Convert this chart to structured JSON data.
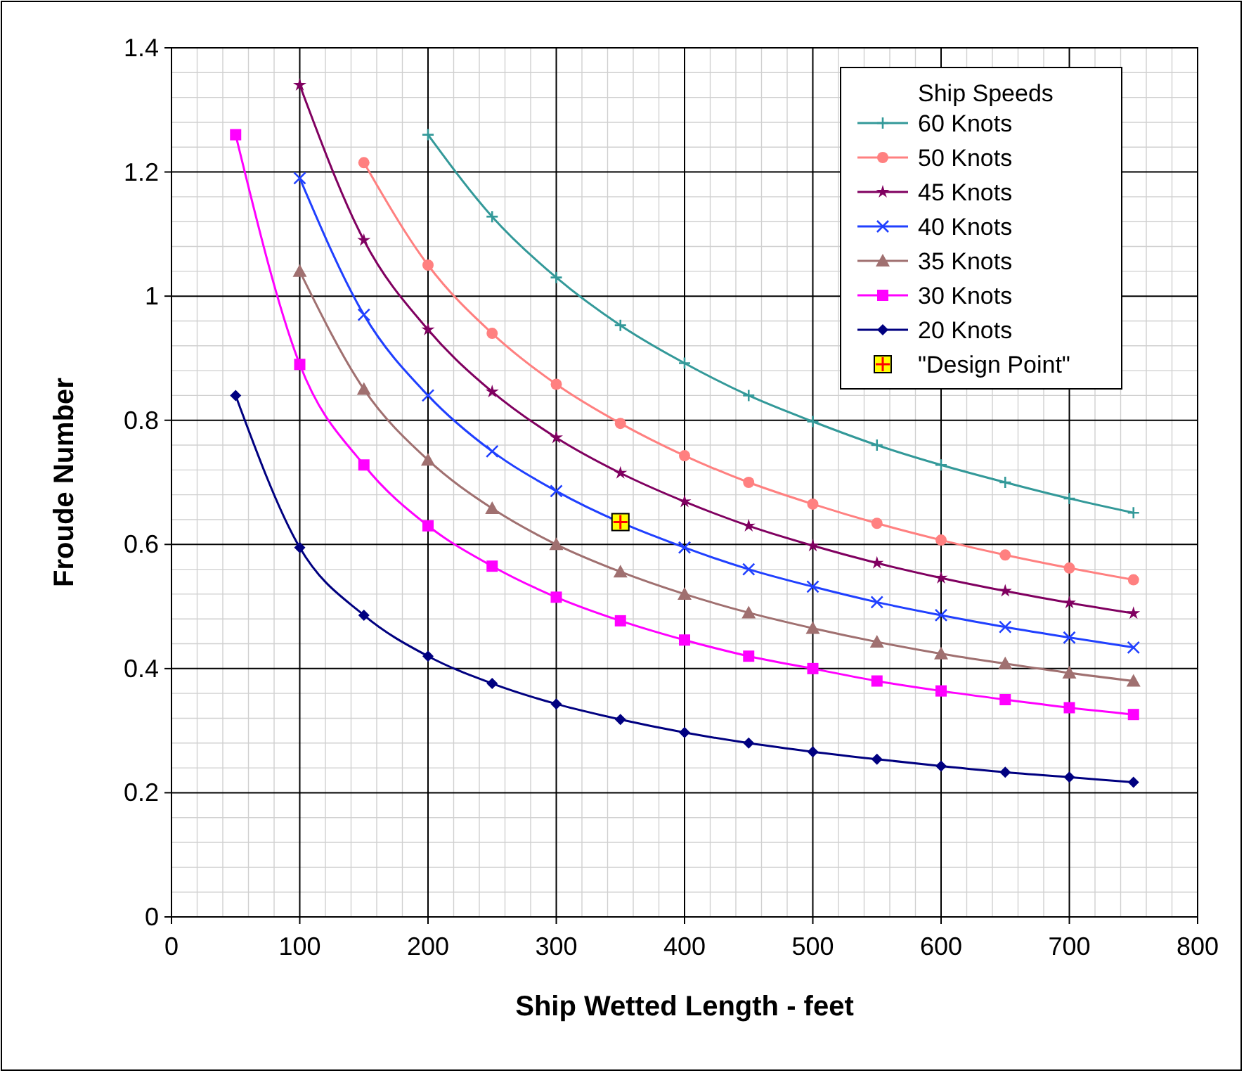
{
  "chart_data": {
    "type": "line",
    "xlabel": "Ship Wetted Length - feet",
    "ylabel": "Froude Number",
    "legend_title": "Ship Speeds",
    "legend": "top right",
    "grid": true,
    "xlim": [
      0,
      800
    ],
    "xticks": [
      0,
      100,
      200,
      300,
      400,
      500,
      600,
      700,
      800
    ],
    "ylim": [
      0,
      1.4
    ],
    "yticks": [
      0,
      0.2,
      0.4,
      0.6,
      0.8,
      1,
      1.2,
      1.4
    ],
    "x": [
      50,
      100,
      150,
      200,
      250,
      300,
      350,
      400,
      450,
      500,
      550,
      600,
      650,
      700,
      750
    ],
    "series": [
      {
        "name": "60 Knots",
        "color": "#339999",
        "marker": "cross",
        "values": [
          null,
          null,
          null,
          1.26,
          1.128,
          1.03,
          0.953,
          0.892,
          0.84,
          0.798,
          0.76,
          0.728,
          0.7,
          0.674,
          0.651
        ]
      },
      {
        "name": "50 Knots",
        "color": "#ff8080",
        "marker": "circle",
        "values": [
          null,
          null,
          1.215,
          1.05,
          0.94,
          0.858,
          0.795,
          0.743,
          0.7,
          0.665,
          0.634,
          0.607,
          0.583,
          0.562,
          0.543
        ]
      },
      {
        "name": "45 Knots",
        "color": "#800060",
        "marker": "star",
        "values": [
          null,
          1.34,
          1.09,
          0.946,
          0.846,
          0.772,
          0.715,
          0.669,
          0.63,
          0.598,
          0.57,
          0.546,
          0.525,
          0.506,
          0.489
        ]
      },
      {
        "name": "40 Knots",
        "color": "#2040ff",
        "marker": "x",
        "values": [
          null,
          1.19,
          0.97,
          0.84,
          0.75,
          0.686,
          null,
          0.595,
          0.56,
          0.532,
          0.507,
          0.486,
          0.467,
          0.45,
          0.434
        ]
      },
      {
        "name": "35 Knots",
        "color": "#a07070",
        "marker": "triangle",
        "values": [
          null,
          1.04,
          0.85,
          0.736,
          0.658,
          0.6,
          0.556,
          0.52,
          0.49,
          0.465,
          0.443,
          0.424,
          0.408,
          0.393,
          0.38
        ]
      },
      {
        "name": "30 Knots",
        "color": "#ff00ff",
        "marker": "square",
        "values": [
          1.26,
          0.89,
          0.728,
          0.63,
          0.565,
          0.515,
          0.477,
          0.446,
          0.42,
          0.4,
          0.38,
          0.364,
          0.35,
          0.337,
          0.326
        ]
      },
      {
        "name": "20 Knots",
        "color": "#000080",
        "marker": "diamond",
        "values": [
          0.84,
          0.595,
          0.486,
          0.42,
          0.376,
          0.343,
          0.318,
          0.297,
          0.28,
          0.266,
          0.254,
          0.243,
          0.233,
          0.225,
          0.217
        ]
      },
      {
        "name": "\"Design Point\"",
        "type": "scatter",
        "color": "#ffff00",
        "marker": "square",
        "x": [
          350
        ],
        "values": [
          0.636
        ]
      }
    ]
  }
}
